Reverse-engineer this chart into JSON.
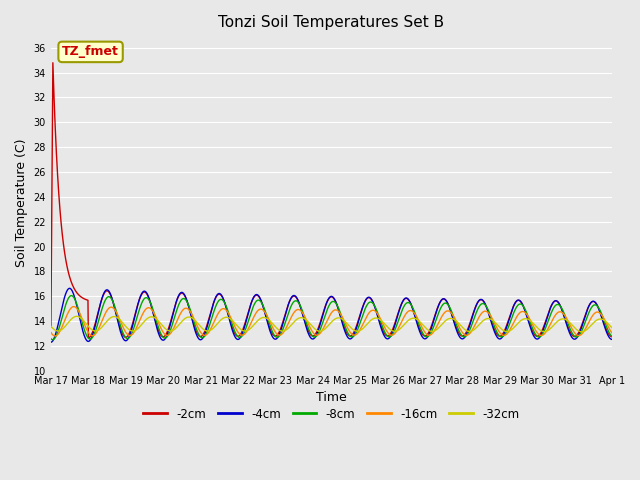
{
  "title": "Tonzi Soil Temperatures Set B",
  "xlabel": "Time",
  "ylabel": "Soil Temperature (C)",
  "ylim": [
    10,
    37
  ],
  "yticks": [
    10,
    12,
    14,
    16,
    18,
    20,
    22,
    24,
    26,
    28,
    30,
    32,
    34,
    36
  ],
  "xlim": [
    0,
    15
  ],
  "bg_color": "#e8e8e8",
  "series": [
    {
      "label": "-2cm",
      "color": "#cc0000"
    },
    {
      "label": "-4cm",
      "color": "#0000cc"
    },
    {
      "label": "-8cm",
      "color": "#00aa00"
    },
    {
      "label": "-16cm",
      "color": "#ff8800"
    },
    {
      "label": "-32cm",
      "color": "#cccc00"
    }
  ],
  "day_labels": [
    "Mar 17",
    "Mar 18",
    "Mar 19",
    "Mar 20",
    "Mar 21",
    "Mar 22",
    "Mar 23",
    "Mar 24",
    "Mar 25",
    "Mar 26",
    "Mar 27",
    "Mar 28",
    "Mar 29",
    "Mar 30",
    "Mar 31",
    "Apr 1"
  ],
  "annotation_label": "TZ_fmet",
  "annotation_color": "#cc0000",
  "annotation_bg": "#ffffcc",
  "annotation_border": "#999900"
}
